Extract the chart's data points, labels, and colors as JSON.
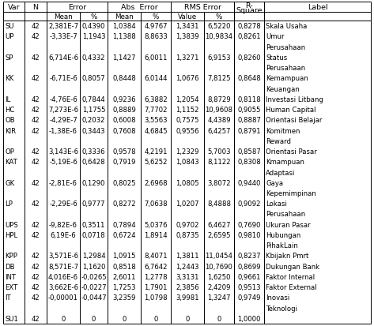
{
  "rows": [
    [
      "SU",
      "42",
      "2,381E-7",
      "0,4390",
      "1,0384",
      "4,9767",
      "1,3431",
      "6,5220",
      "0,8278",
      "Skala Usaha"
    ],
    [
      "UP",
      "42",
      "-3,33E-7",
      "1,1943",
      "1,1388",
      "8,8633",
      "1,3839",
      "10,9834",
      "0,8261",
      "Umur"
    ],
    [
      "",
      "",
      "",
      "",
      "",
      "",
      "",
      "",
      "",
      "Perusahaan"
    ],
    [
      "SP",
      "42",
      "6,714E-6",
      "0,4332",
      "1,1427",
      "6,0011",
      "1,3271",
      "6,9153",
      "0,8260",
      "Status"
    ],
    [
      "",
      "",
      "",
      "",
      "",
      "",
      "",
      "",
      "",
      "Perusahaan"
    ],
    [
      "KK",
      "42",
      "-6,71E-6",
      "0,8057",
      "0,8448",
      "6,0144",
      "1,0676",
      "7,8125",
      "0,8648",
      "Kemampuan"
    ],
    [
      "",
      "",
      "",
      "",
      "",
      "",
      "",
      "",
      "",
      "Keuangan"
    ],
    [
      "IL",
      "42",
      "-4,76E-6",
      "0,7844",
      "0,9236",
      "6,3882",
      "1,2054",
      "8,8729",
      "0,8118",
      "Investasi Litbang"
    ],
    [
      "HC",
      "42",
      "7,273E-6",
      "1,1755",
      "0,8889",
      "7,7702",
      "1,1152",
      "10,9608",
      "0,9055",
      "Human Capital"
    ],
    [
      "OB",
      "42",
      "-4,29E-7",
      "0,2032",
      "0,6008",
      "3,5563",
      "0,7575",
      "4,4389",
      "0,8887",
      "Orientasi Belajar"
    ],
    [
      "KIR",
      "42",
      "-1,38E-6",
      "0,3443",
      "0,7608",
      "4,6845",
      "0,9556",
      "6,4257",
      "0,8791",
      "Komitmen"
    ],
    [
      "",
      "",
      "",
      "",
      "",
      "",
      "",
      "",
      "",
      "Reward"
    ],
    [
      "OP",
      "42",
      "3,143E-6",
      "0,3336",
      "0,9578",
      "4,2191",
      "1,2329",
      "5,7003",
      "0,8587",
      "Orientasi Pasar"
    ],
    [
      "KAT",
      "42",
      "-5,19E-6",
      "0,6428",
      "0,7919",
      "5,6252",
      "1,0843",
      "8,1122",
      "0,8308",
      "Kmampuan"
    ],
    [
      "",
      "",
      "",
      "",
      "",
      "",
      "",
      "",
      "",
      "Adaptasi"
    ],
    [
      "GK",
      "42",
      "-2,81E-6",
      "0,1290",
      "0,8025",
      "2,6968",
      "1,0805",
      "3,8072",
      "0,9440",
      "Gaya"
    ],
    [
      "",
      "",
      "",
      "",
      "",
      "",
      "",
      "",
      "",
      "Kepemimpinan"
    ],
    [
      "LP",
      "42",
      "-2,29E-6",
      "0,9777",
      "0,8272",
      "7,0638",
      "1,0207",
      "8,4888",
      "0,9092",
      "Lokasi"
    ],
    [
      "",
      "",
      "",
      "",
      "",
      "",
      "",
      "",
      "",
      "Perusahaan"
    ],
    [
      "UPS",
      "42",
      "-9,82E-6",
      "0,3511",
      "0,7894",
      "5,0376",
      "0,9702",
      "6,4627",
      "0,7690",
      "Ukuran Pasar"
    ],
    [
      "HPL",
      "42",
      "6,19E-6",
      "0,0718",
      "0,6724",
      "1,8914",
      "0,8735",
      "2,6595",
      "0,9810",
      "Hubungan"
    ],
    [
      "",
      "",
      "",
      "",
      "",
      "",
      "",
      "",
      "",
      "PihakLain"
    ],
    [
      "KPP",
      "42",
      "3,571E-6",
      "1,2984",
      "1,0915",
      "8,4071",
      "1,3811",
      "11,0454",
      "0,8237",
      "Kbijakn Pmrt"
    ],
    [
      "DB",
      "42",
      "8,571E-7",
      "1,1620",
      "0,8518",
      "6,7642",
      "1,2443",
      "10,7690",
      "0,8699",
      "Dukungan Bank"
    ],
    [
      "INT",
      "42",
      "4,016E-6",
      "-0,0265",
      "2,6011",
      "1,2778",
      "3,3131",
      "1,6250",
      "0,9661",
      "Faktor Internal"
    ],
    [
      "EXT",
      "42",
      "3,662E-6",
      "-0,0227",
      "1,7253",
      "1,7901",
      "2,3856",
      "2,4209",
      "0,9513",
      "Faktor External"
    ],
    [
      "IT",
      "42",
      "-0,00001",
      "-0,0447",
      "3,2359",
      "1,0798",
      "3,9981",
      "1,3247",
      "0,9749",
      "Inovasi"
    ],
    [
      "",
      "",
      "",
      "",
      "",
      "",
      "",
      "",
      "",
      "Teknologi"
    ],
    [
      "SU1",
      "42",
      "0",
      "0",
      "0",
      "0",
      "0",
      "0",
      "1,0000",
      ""
    ]
  ],
  "bg_color": "#ffffff"
}
